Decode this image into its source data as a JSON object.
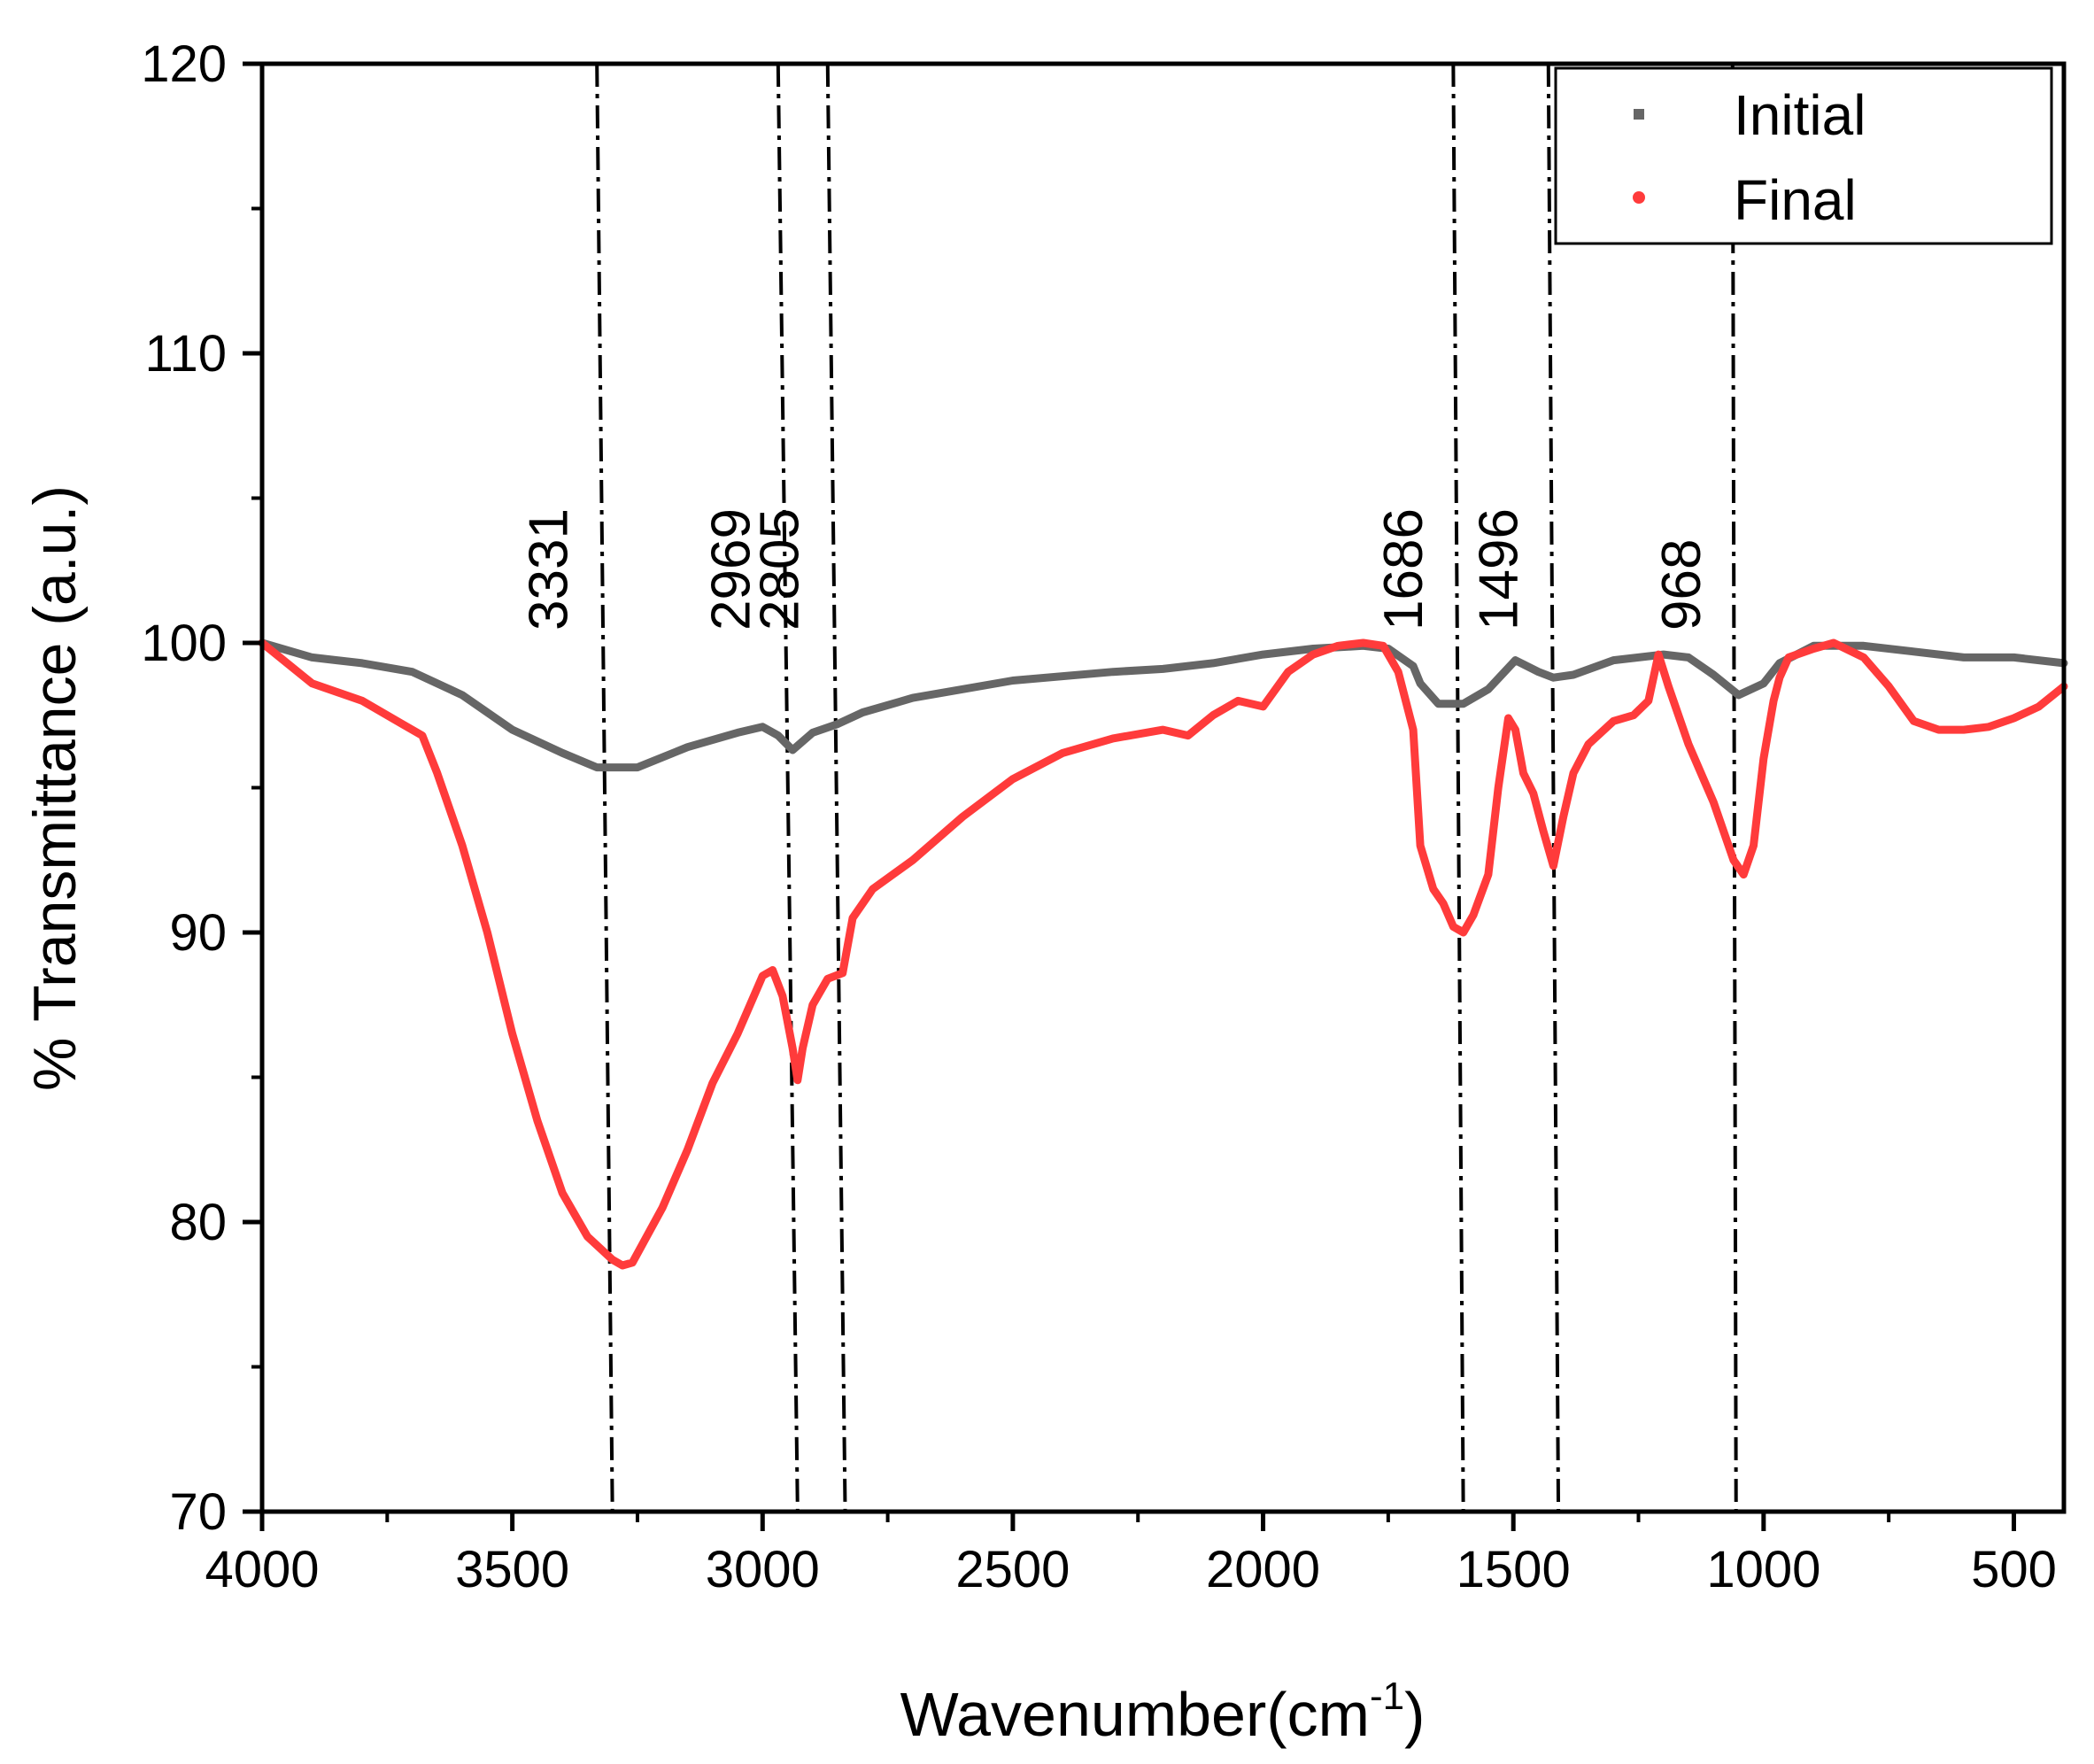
{
  "chart_data": {
    "type": "line",
    "title": "",
    "xlabel": "Wavenumber(cm",
    "xlabel_sup": "-1",
    "xlabel_close": ")",
    "ylabel": "% Transmittance (a.u.)",
    "xlim": [
      4000,
      400
    ],
    "ylim": [
      70,
      120
    ],
    "x_ticks": [
      4000,
      3500,
      3000,
      2500,
      2000,
      1500,
      1000,
      500
    ],
    "x_tick_labels": [
      "4000",
      "3500",
      "3000",
      "2500",
      "2000",
      "1500",
      "1000",
      "500"
    ],
    "y_ticks": [
      70,
      80,
      90,
      100,
      110,
      120
    ],
    "y_tick_labels": [
      "70",
      "80",
      "90",
      "100",
      "110",
      "120"
    ],
    "legend_position": "top-right",
    "colors": {
      "initial": "#666666",
      "final": "#ff3b3b",
      "axis": "#000000"
    },
    "series": [
      {
        "name": "Initial",
        "color": "#666666",
        "points": [
          [
            4000,
            100
          ],
          [
            3900,
            99.5
          ],
          [
            3800,
            99.3
          ],
          [
            3700,
            99.0
          ],
          [
            3600,
            98.2
          ],
          [
            3500,
            97.0
          ],
          [
            3400,
            96.2
          ],
          [
            3331,
            95.7
          ],
          [
            3250,
            95.7
          ],
          [
            3150,
            96.4
          ],
          [
            3050,
            96.9
          ],
          [
            3000,
            97.1
          ],
          [
            2969,
            96.8
          ],
          [
            2940,
            96.3
          ],
          [
            2900,
            96.9
          ],
          [
            2850,
            97.2
          ],
          [
            2800,
            97.6
          ],
          [
            2700,
            98.1
          ],
          [
            2500,
            98.7
          ],
          [
            2300,
            99.0
          ],
          [
            2200,
            99.1
          ],
          [
            2100,
            99.3
          ],
          [
            2000,
            99.6
          ],
          [
            1900,
            99.8
          ],
          [
            1800,
            99.9
          ],
          [
            1750,
            99.8
          ],
          [
            1700,
            99.2
          ],
          [
            1686,
            98.6
          ],
          [
            1650,
            97.9
          ],
          [
            1600,
            97.9
          ],
          [
            1550,
            98.4
          ],
          [
            1496,
            99.4
          ],
          [
            1450,
            99.0
          ],
          [
            1420,
            98.8
          ],
          [
            1380,
            98.9
          ],
          [
            1300,
            99.4
          ],
          [
            1200,
            99.6
          ],
          [
            1150,
            99.5
          ],
          [
            1100,
            98.9
          ],
          [
            1050,
            98.2
          ],
          [
            1000,
            98.6
          ],
          [
            968,
            99.3
          ],
          [
            900,
            99.9
          ],
          [
            800,
            99.9
          ],
          [
            700,
            99.7
          ],
          [
            600,
            99.5
          ],
          [
            500,
            99.5
          ],
          [
            400,
            99.3
          ]
        ]
      },
      {
        "name": "Final",
        "color": "#ff3b3b",
        "points": [
          [
            4000,
            100
          ],
          [
            3900,
            98.6
          ],
          [
            3800,
            98.0
          ],
          [
            3720,
            97.2
          ],
          [
            3680,
            96.8
          ],
          [
            3650,
            95.5
          ],
          [
            3600,
            93.0
          ],
          [
            3550,
            90.0
          ],
          [
            3500,
            86.5
          ],
          [
            3450,
            83.5
          ],
          [
            3400,
            81.0
          ],
          [
            3350,
            79.5
          ],
          [
            3300,
            78.7
          ],
          [
            3280,
            78.5
          ],
          [
            3260,
            78.6
          ],
          [
            3200,
            80.5
          ],
          [
            3150,
            82.5
          ],
          [
            3100,
            84.8
          ],
          [
            3050,
            86.5
          ],
          [
            3000,
            88.5
          ],
          [
            2980,
            88.7
          ],
          [
            2960,
            87.8
          ],
          [
            2940,
            86.0
          ],
          [
            2930,
            84.9
          ],
          [
            2920,
            86.0
          ],
          [
            2900,
            87.5
          ],
          [
            2870,
            88.4
          ],
          [
            2840,
            88.6
          ],
          [
            2820,
            90.5
          ],
          [
            2780,
            91.5
          ],
          [
            2700,
            92.5
          ],
          [
            2600,
            94.0
          ],
          [
            2500,
            95.3
          ],
          [
            2400,
            96.2
          ],
          [
            2300,
            96.7
          ],
          [
            2200,
            97.0
          ],
          [
            2150,
            96.8
          ],
          [
            2100,
            97.5
          ],
          [
            2050,
            98.0
          ],
          [
            2000,
            97.8
          ],
          [
            1950,
            99.0
          ],
          [
            1900,
            99.6
          ],
          [
            1850,
            99.9
          ],
          [
            1800,
            100.0
          ],
          [
            1760,
            99.9
          ],
          [
            1730,
            99.0
          ],
          [
            1700,
            97.0
          ],
          [
            1686,
            93.0
          ],
          [
            1660,
            91.5
          ],
          [
            1640,
            91.0
          ],
          [
            1620,
            90.2
          ],
          [
            1600,
            90.0
          ],
          [
            1580,
            90.6
          ],
          [
            1550,
            92.0
          ],
          [
            1530,
            95.0
          ],
          [
            1510,
            97.4
          ],
          [
            1496,
            97.0
          ],
          [
            1480,
            95.5
          ],
          [
            1460,
            94.8
          ],
          [
            1440,
            93.5
          ],
          [
            1420,
            92.3
          ],
          [
            1400,
            94.0
          ],
          [
            1380,
            95.5
          ],
          [
            1350,
            96.5
          ],
          [
            1300,
            97.3
          ],
          [
            1260,
            97.5
          ],
          [
            1230,
            98.0
          ],
          [
            1210,
            99.6
          ],
          [
            1190,
            98.5
          ],
          [
            1150,
            96.5
          ],
          [
            1100,
            94.5
          ],
          [
            1060,
            92.5
          ],
          [
            1040,
            92.0
          ],
          [
            1020,
            93.0
          ],
          [
            1000,
            96.0
          ],
          [
            980,
            98.0
          ],
          [
            968,
            98.8
          ],
          [
            950,
            99.5
          ],
          [
            900,
            99.8
          ],
          [
            860,
            100.0
          ],
          [
            800,
            99.5
          ],
          [
            750,
            98.5
          ],
          [
            700,
            97.3
          ],
          [
            650,
            97.0
          ],
          [
            600,
            97.0
          ],
          [
            550,
            97.1
          ],
          [
            500,
            97.4
          ],
          [
            450,
            97.8
          ],
          [
            400,
            98.5
          ]
        ]
      }
    ],
    "annotations": [
      {
        "label": "3331",
        "x_top": 3331,
        "x_bottom": 3300
      },
      {
        "label": "2969",
        "x_top": 2969,
        "x_bottom": 2930
      },
      {
        "label": "2805",
        "x_top": 2870,
        "x_bottom": 2835
      },
      {
        "label": "1686",
        "x_top": 1620,
        "x_bottom": 1600
      },
      {
        "label": "1496",
        "x_top": 1430,
        "x_bottom": 1410
      },
      {
        "label": "968",
        "x_top": 1062,
        "x_bottom": 1055
      }
    ]
  }
}
